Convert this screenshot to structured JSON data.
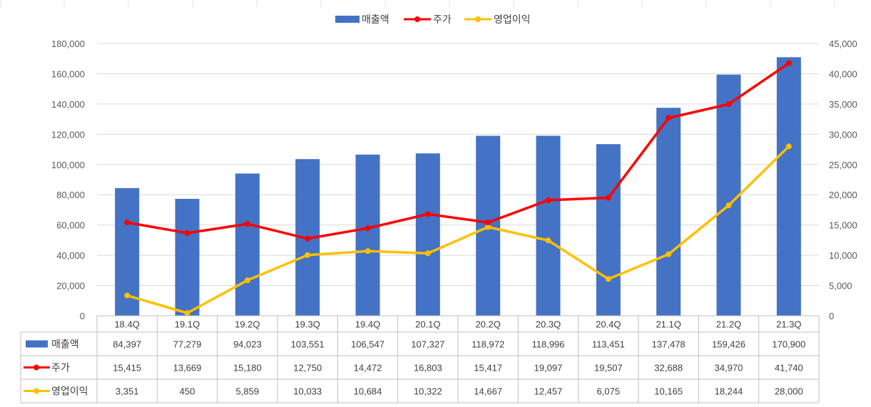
{
  "chart_data": {
    "type": "bar",
    "categories": [
      "18.4Q",
      "19.1Q",
      "19.2Q",
      "19.3Q",
      "19.4Q",
      "20.1Q",
      "20.2Q",
      "20.3Q",
      "20.4Q",
      "21.1Q",
      "21.2Q",
      "21.3Q"
    ],
    "series": [
      {
        "name": "매출액",
        "kind": "bar",
        "axis": "left",
        "color": "#4472C4",
        "values": [
          84397,
          77279,
          94023,
          103551,
          106547,
          107327,
          118972,
          118996,
          113451,
          137478,
          159426,
          170900
        ],
        "labels": [
          "84,397",
          "77,279",
          "94,023",
          "103,551",
          "106,547",
          "107,327",
          "118,972",
          "118,996",
          "113,451",
          "137,478",
          "159,426",
          "170,900"
        ]
      },
      {
        "name": "주가",
        "kind": "line",
        "axis": "right",
        "color": "#FF0000",
        "values": [
          15415,
          13669,
          15180,
          12750,
          14472,
          16803,
          15417,
          19097,
          19507,
          32688,
          34970,
          41740
        ],
        "labels": [
          "15,415",
          "13,669",
          "15,180",
          "12,750",
          "14,472",
          "16,803",
          "15,417",
          "19,097",
          "19,507",
          "32,688",
          "34,970",
          "41,740"
        ]
      },
      {
        "name": "영업이익",
        "kind": "line",
        "axis": "right",
        "color": "#FFC000",
        "values": [
          3351,
          450,
          5859,
          10033,
          10684,
          10322,
          14667,
          12457,
          6075,
          10165,
          18244,
          28000
        ],
        "labels": [
          "3,351",
          "450",
          "5,859",
          "10,033",
          "10,684",
          "10,322",
          "14,667",
          "12,457",
          "6,075",
          "10,165",
          "18,244",
          "28,000"
        ]
      }
    ],
    "y_left": {
      "min": 0,
      "max": 180000,
      "ticks": [
        "0",
        "20,000",
        "40,000",
        "60,000",
        "80,000",
        "100,000",
        "120,000",
        "140,000",
        "160,000",
        "180,000"
      ]
    },
    "y_right": {
      "min": 0,
      "max": 45000,
      "ticks": [
        "0",
        "5,000",
        "10,000",
        "15,000",
        "20,000",
        "25,000",
        "30,000",
        "35,000",
        "40,000",
        "45,000"
      ]
    },
    "legend_position": "top-center",
    "grid": true,
    "data_table": true
  }
}
